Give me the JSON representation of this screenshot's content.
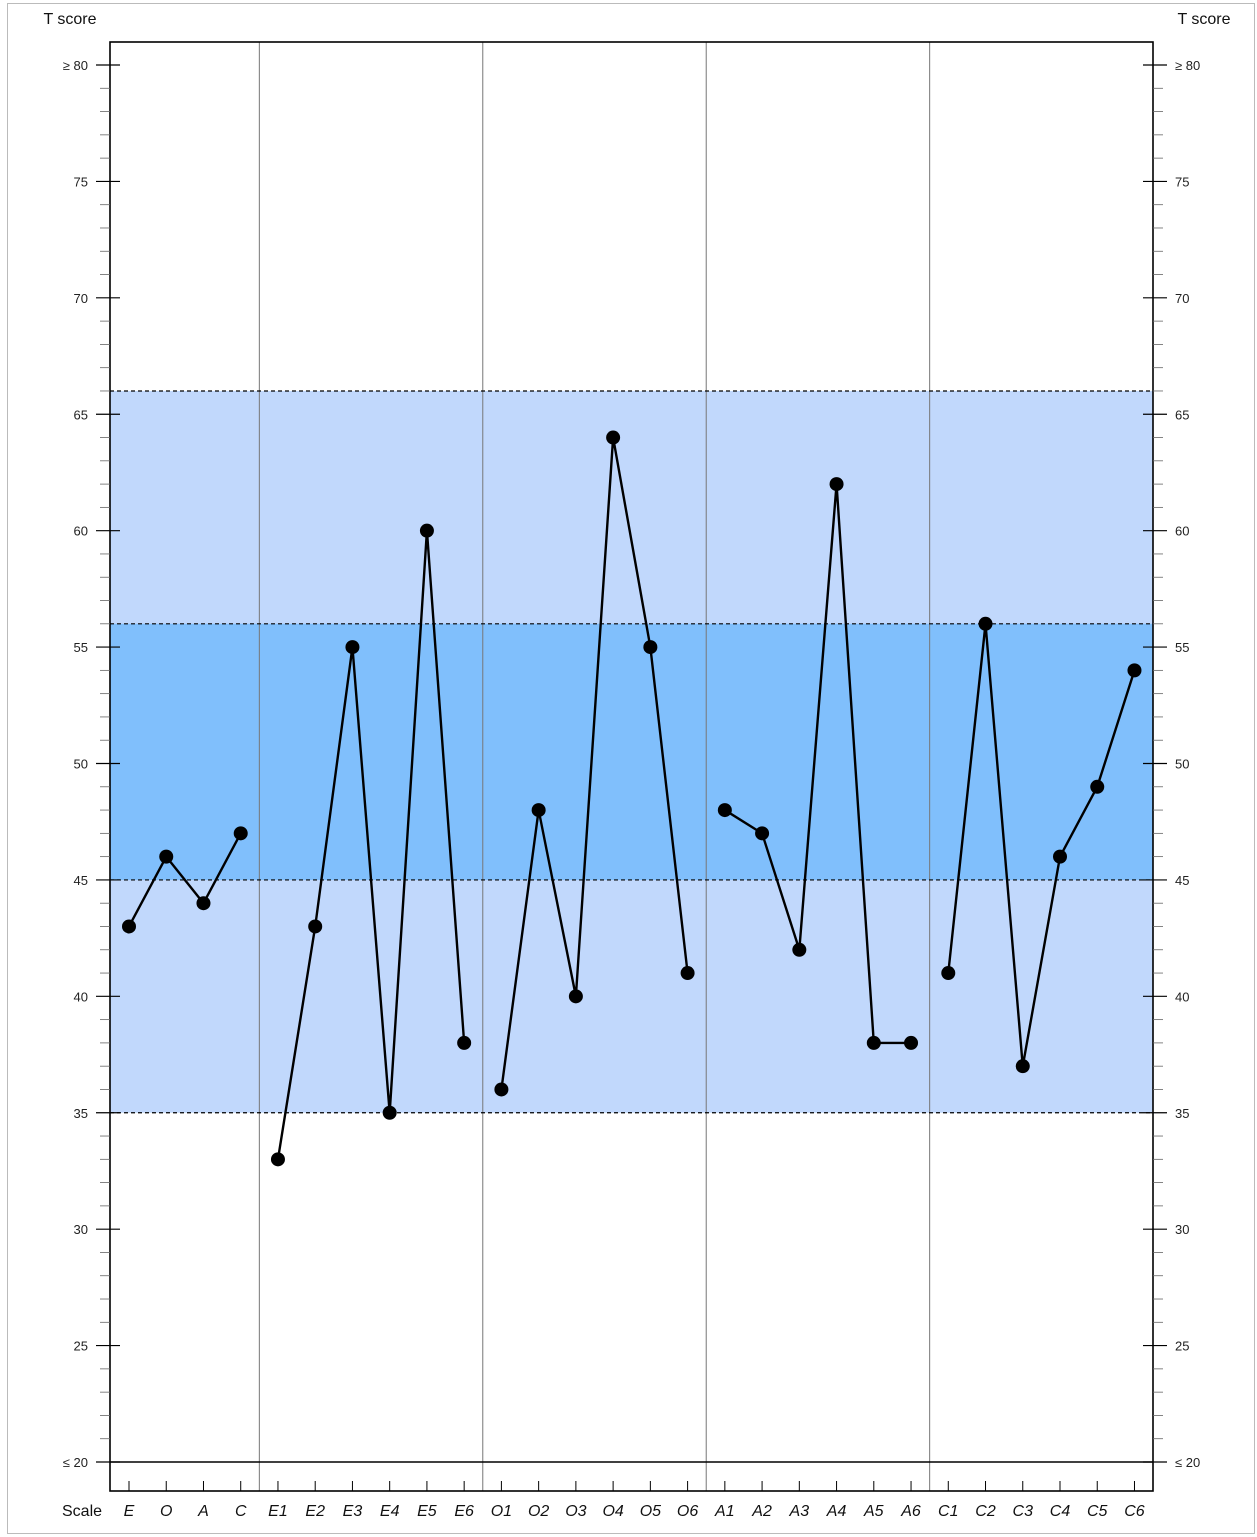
{
  "chart_data": {
    "type": "line",
    "y_axis_title_left": "T score",
    "y_axis_title_right": "T score",
    "x_axis_title": "Scale",
    "ylim": [
      20,
      80
    ],
    "y_ticks": [
      {
        "value": 80,
        "label": "≥ 80"
      },
      {
        "value": 75,
        "label": "75"
      },
      {
        "value": 70,
        "label": "70"
      },
      {
        "value": 65,
        "label": "65"
      },
      {
        "value": 60,
        "label": "60"
      },
      {
        "value": 55,
        "label": "55"
      },
      {
        "value": 50,
        "label": "50"
      },
      {
        "value": 45,
        "label": "45"
      },
      {
        "value": 40,
        "label": "40"
      },
      {
        "value": 35,
        "label": "35"
      },
      {
        "value": 30,
        "label": "30"
      },
      {
        "value": 25,
        "label": "25"
      },
      {
        "value": 20,
        "label": "≤ 20"
      }
    ],
    "bands": [
      {
        "from": 35,
        "to": 66,
        "color": "#c1d8fc"
      },
      {
        "from": 45,
        "to": 56,
        "color": "#80bffc"
      }
    ],
    "reference_lines": [
      35,
      45,
      56,
      66
    ],
    "categories": [
      "E",
      "O",
      "A",
      "C",
      "E1",
      "E2",
      "E3",
      "E4",
      "E5",
      "E6",
      "O1",
      "O2",
      "O3",
      "O4",
      "O5",
      "O6",
      "A1",
      "A2",
      "A3",
      "A4",
      "A5",
      "A6",
      "C1",
      "C2",
      "C3",
      "C4",
      "C5",
      "C6"
    ],
    "groups": [
      {
        "categories": [
          "E",
          "O",
          "A",
          "C"
        ],
        "values": [
          43,
          46,
          44,
          47
        ]
      },
      {
        "categories": [
          "E1",
          "E2",
          "E3",
          "E4",
          "E5",
          "E6"
        ],
        "values": [
          33,
          43,
          55,
          35,
          60,
          38
        ]
      },
      {
        "categories": [
          "O1",
          "O2",
          "O3",
          "O4",
          "O5",
          "O6"
        ],
        "values": [
          36,
          48,
          40,
          64,
          55,
          41
        ]
      },
      {
        "categories": [
          "A1",
          "A2",
          "A3",
          "A4",
          "A5",
          "A6"
        ],
        "values": [
          48,
          47,
          42,
          62,
          38,
          38
        ]
      },
      {
        "categories": [
          "C1",
          "C2",
          "C3",
          "C4",
          "C5",
          "C6"
        ],
        "values": [
          41,
          56,
          37,
          46,
          49,
          54
        ]
      }
    ],
    "line_color": "#000000",
    "grid": false
  }
}
